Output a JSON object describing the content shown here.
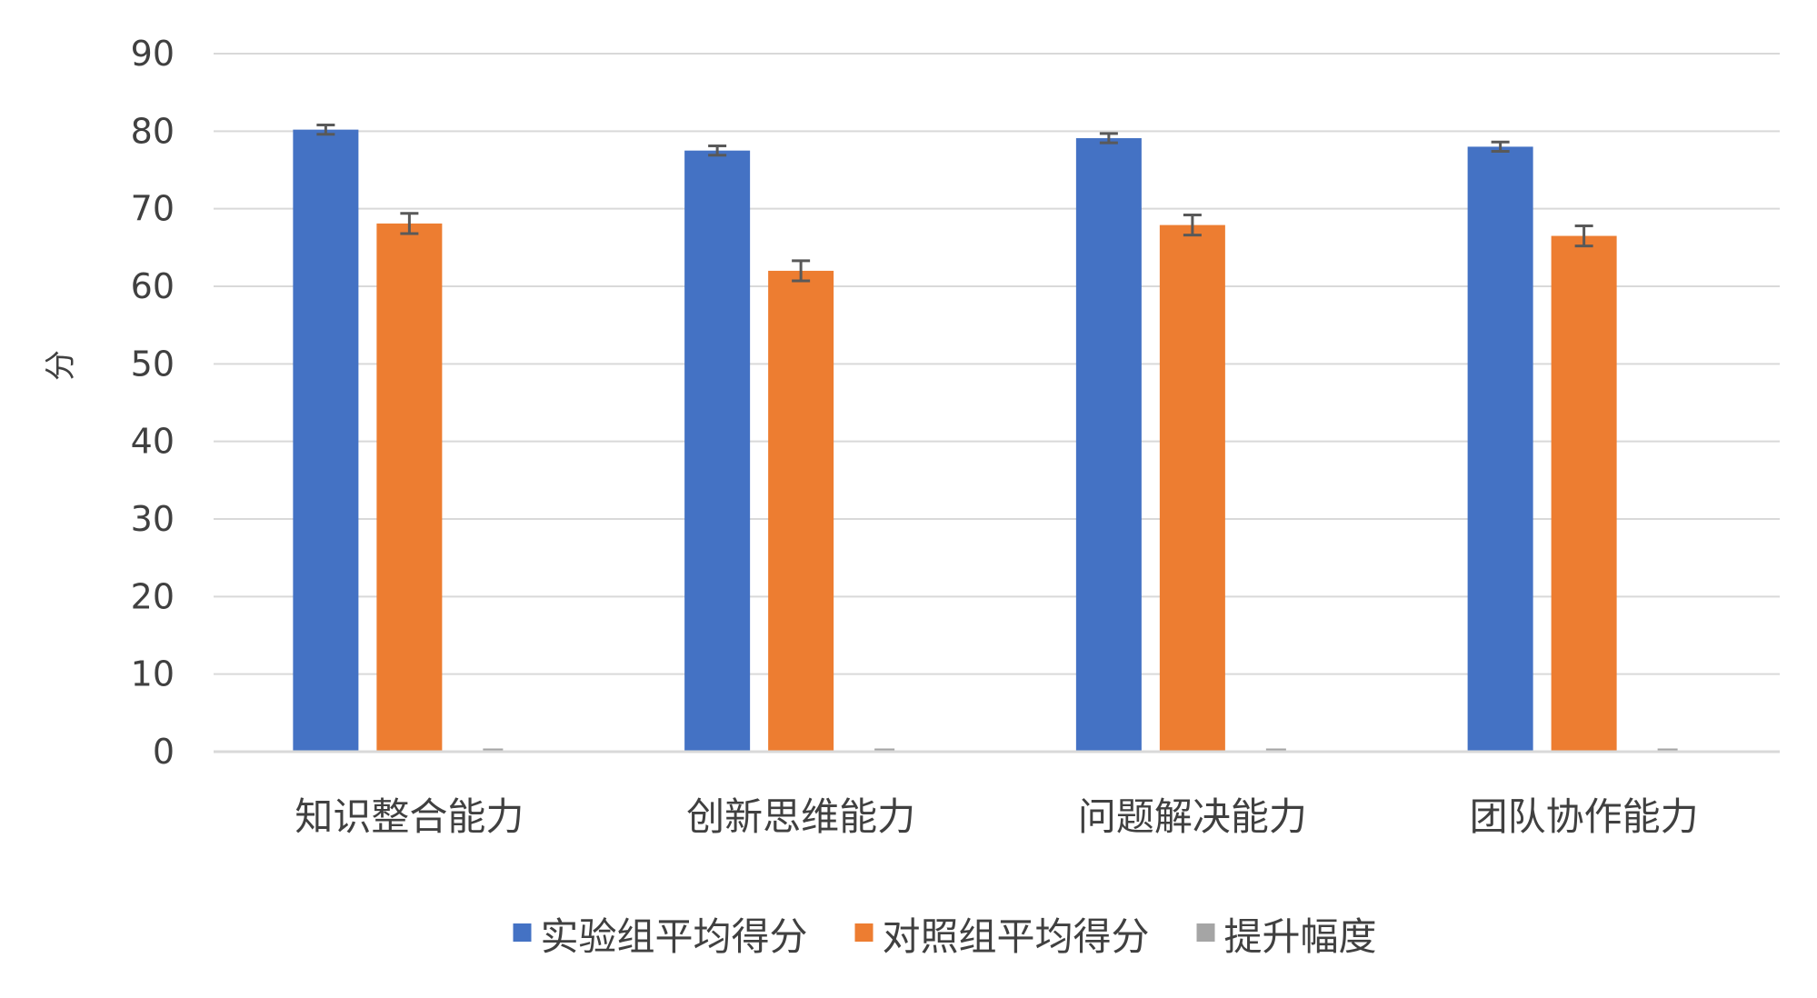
{
  "chart_data": {
    "type": "bar",
    "title": "",
    "xlabel": "",
    "ylabel": "分",
    "ylim": [
      0,
      90
    ],
    "yticks": [
      0,
      10,
      20,
      30,
      40,
      50,
      60,
      70,
      80,
      90
    ],
    "grid": true,
    "legend_position": "bottom",
    "categories": [
      "知识整合能力",
      "创新思维能力",
      "问题解决能力",
      "团队协作能力"
    ],
    "series": [
      {
        "name": "实验组平均得分",
        "color": "#4472C4",
        "values": [
          80.2,
          77.5,
          79.1,
          78.0
        ],
        "error": [
          0.6,
          0.6,
          0.6,
          0.6
        ]
      },
      {
        "name": "对照组平均得分",
        "color": "#ED7D31",
        "values": [
          68.1,
          62.0,
          67.9,
          66.5
        ],
        "error": [
          1.3,
          1.3,
          1.3,
          1.3
        ]
      },
      {
        "name": "提升幅度",
        "color": "#A5A5A5",
        "values": [
          0,
          0,
          0,
          0
        ],
        "error": [
          0,
          0,
          0,
          0
        ]
      }
    ]
  }
}
